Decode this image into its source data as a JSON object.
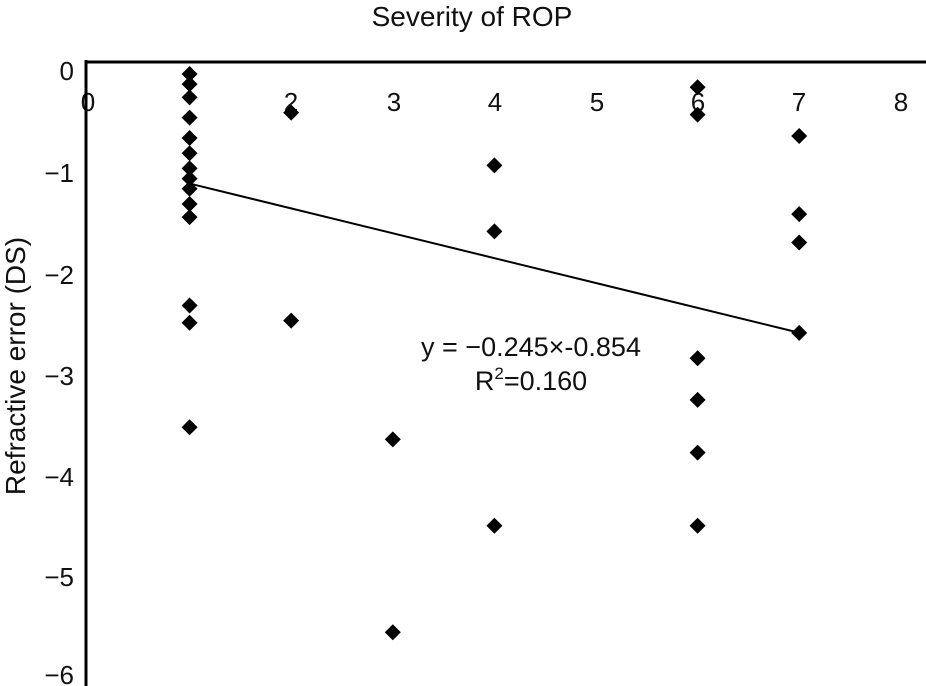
{
  "chart_data": {
    "type": "scatter",
    "title": "Severity of ROP",
    "xlabel": "",
    "ylabel": "Refractive error (DS)",
    "xlim": [
      0,
      8
    ],
    "ylim": [
      -6,
      0
    ],
    "x_ticks": [
      "0",
      "2",
      "3",
      "4",
      "5",
      "6",
      "7",
      "8"
    ],
    "y_ticks": [
      "0",
      "−1",
      "−2",
      "−3",
      "−4",
      "−5",
      "−6"
    ],
    "x_axis_position": "top",
    "grid": false,
    "legend": "none",
    "marker": "diamond",
    "series": [
      {
        "points": [
          {
            "x": 1,
            "y": -0.02
          },
          {
            "x": 1,
            "y": -0.12
          },
          {
            "x": 1,
            "y": -0.25
          },
          {
            "x": 1,
            "y": -0.45
          },
          {
            "x": 1,
            "y": -0.65
          },
          {
            "x": 1,
            "y": -0.8
          },
          {
            "x": 1,
            "y": -0.95
          },
          {
            "x": 1,
            "y": -1.05
          },
          {
            "x": 1,
            "y": -1.15
          },
          {
            "x": 1,
            "y": -1.3
          },
          {
            "x": 1,
            "y": -1.43
          },
          {
            "x": 1,
            "y": -2.3
          },
          {
            "x": 1,
            "y": -2.47
          },
          {
            "x": 1,
            "y": -3.5
          },
          {
            "x": 2,
            "y": -0.4
          },
          {
            "x": 2,
            "y": -2.45
          },
          {
            "x": 3,
            "y": -3.62
          },
          {
            "x": 3,
            "y": -5.52
          },
          {
            "x": 4,
            "y": -0.92
          },
          {
            "x": 4,
            "y": -1.57
          },
          {
            "x": 4,
            "y": -4.47
          },
          {
            "x": 6,
            "y": -0.15
          },
          {
            "x": 6,
            "y": -0.42
          },
          {
            "x": 6,
            "y": -2.82
          },
          {
            "x": 6,
            "y": -3.23
          },
          {
            "x": 6,
            "y": -3.75
          },
          {
            "x": 6,
            "y": -4.47
          },
          {
            "x": 7,
            "y": -0.63
          },
          {
            "x": 7,
            "y": -1.4
          },
          {
            "x": 7,
            "y": -1.68
          },
          {
            "x": 7,
            "y": -2.57
          }
        ]
      }
    ],
    "trendline": {
      "slope": -0.245,
      "intercept": -0.854,
      "x_range": [
        1,
        7
      ]
    },
    "annotations": {
      "equation": "y = −0.245×-0.854",
      "r2_prefix": "R",
      "r2_power": "2",
      "r2_value": "=0.160"
    },
    "colors": {
      "marker": "#000000",
      "line": "#000000"
    }
  }
}
